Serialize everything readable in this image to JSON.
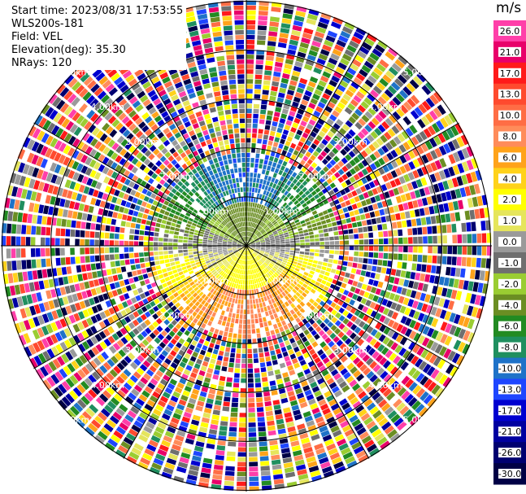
{
  "info": {
    "start_time": "Start time: 2023/08/31 17:53:55",
    "instrument": "WLS200s-181",
    "field": "Field: VEL",
    "elevation": "Elevation(deg): 35.30",
    "nrays": "NRays: 120"
  },
  "ring_labels": [
    "1.00km",
    "2.00km",
    "3.00km",
    "4.00km",
    "5.00km"
  ],
  "colorbar": {
    "unit": "m/s",
    "entries": [
      {
        "label": "26.0",
        "color": "#ff3fa9"
      },
      {
        "label": "21.0",
        "color": "#e8006a"
      },
      {
        "label": "17.0",
        "color": "#ff1a1a"
      },
      {
        "label": "13.0",
        "color": "#ff4a2e"
      },
      {
        "label": "10.0",
        "color": "#ff6d45"
      },
      {
        "label": "8.0",
        "color": "#ff8c5a"
      },
      {
        "label": "6.0",
        "color": "#ffa31a"
      },
      {
        "label": "4.0",
        "color": "#ffd21a"
      },
      {
        "label": "2.0",
        "color": "#ffff00"
      },
      {
        "label": "1.0",
        "color": "#e5e55c"
      },
      {
        "label": "0.0",
        "color": "#9a9a9a"
      },
      {
        "label": "-1.0",
        "color": "#6f6f6f"
      },
      {
        "label": "-2.0",
        "color": "#9acd32"
      },
      {
        "label": "-4.0",
        "color": "#6b8e23"
      },
      {
        "label": "-6.0",
        "color": "#228b22"
      },
      {
        "label": "-8.0",
        "color": "#1f8f5f"
      },
      {
        "label": "-10.0",
        "color": "#1e72c8"
      },
      {
        "label": "-13.0",
        "color": "#1e46ff"
      },
      {
        "label": "-17.0",
        "color": "#0000d0"
      },
      {
        "label": "-21.0",
        "color": "#0000a0"
      },
      {
        "label": "-26.0",
        "color": "#000070"
      },
      {
        "label": "-30.0",
        "color": "#000045"
      }
    ]
  }
}
